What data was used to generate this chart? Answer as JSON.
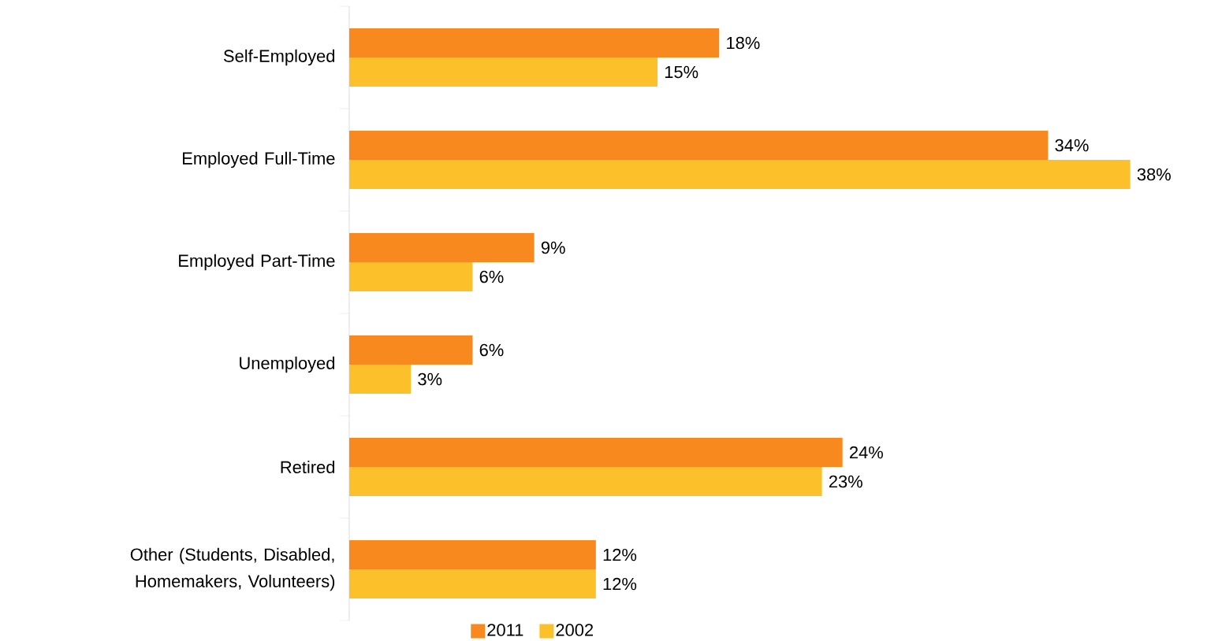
{
  "chart_data": {
    "type": "bar",
    "orientation": "horizontal",
    "categories": [
      "Self-Employed",
      "Employed Full-Time",
      "Employed Part-Time",
      "Unemployed",
      "Retired",
      "Other (Students, Disabled, Homemakers, Volunteers)"
    ],
    "series": [
      {
        "name": "2011",
        "color": "#f7891f",
        "values": [
          18,
          34,
          9,
          6,
          24,
          12
        ],
        "value_labels": [
          "18%",
          "34%",
          "9%",
          "6%",
          "24%",
          "12%"
        ]
      },
      {
        "name": "2002",
        "color": "#fbc02a",
        "values": [
          15,
          38,
          6,
          3,
          23,
          12
        ],
        "value_labels": [
          "15%",
          "38%",
          "6%",
          "3%",
          "23%",
          "12%"
        ]
      }
    ],
    "legend": "bottom"
  }
}
